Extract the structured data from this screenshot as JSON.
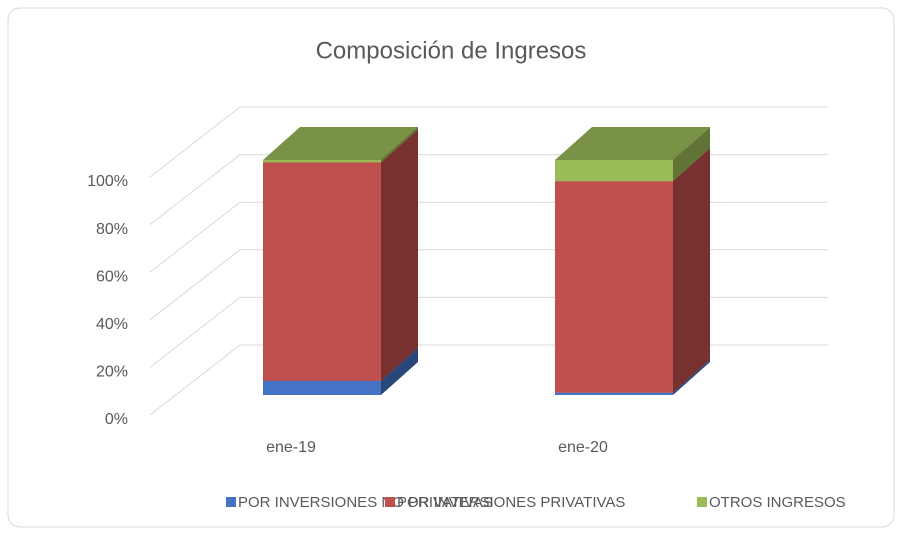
{
  "chart_data": {
    "type": "bar3d_stacked",
    "title": "Composición de Ingresos",
    "categories": [
      "ene-19",
      "ene-20"
    ],
    "series": [
      {
        "name": "POR INVERSIONES NO PRIVATIVAS",
        "color": "#4472c4",
        "values": [
          6,
          1
        ]
      },
      {
        "name": "POR INVERSIONES PRIVATIVAS",
        "color": "#c0504d",
        "values": [
          93,
          90
        ]
      },
      {
        "name": "OTROS INGRESOS",
        "color": "#9bbb59",
        "values": [
          1,
          9
        ]
      }
    ],
    "ylim": [
      0,
      100
    ],
    "yticks": [
      {
        "value": 0,
        "label": "0%"
      },
      {
        "value": 20,
        "label": "20%"
      },
      {
        "value": 40,
        "label": "40%"
      },
      {
        "value": 60,
        "label": "60%"
      },
      {
        "value": 80,
        "label": "80%"
      },
      {
        "value": 100,
        "label": "100%"
      }
    ],
    "grid": true,
    "legend": "bottom"
  }
}
